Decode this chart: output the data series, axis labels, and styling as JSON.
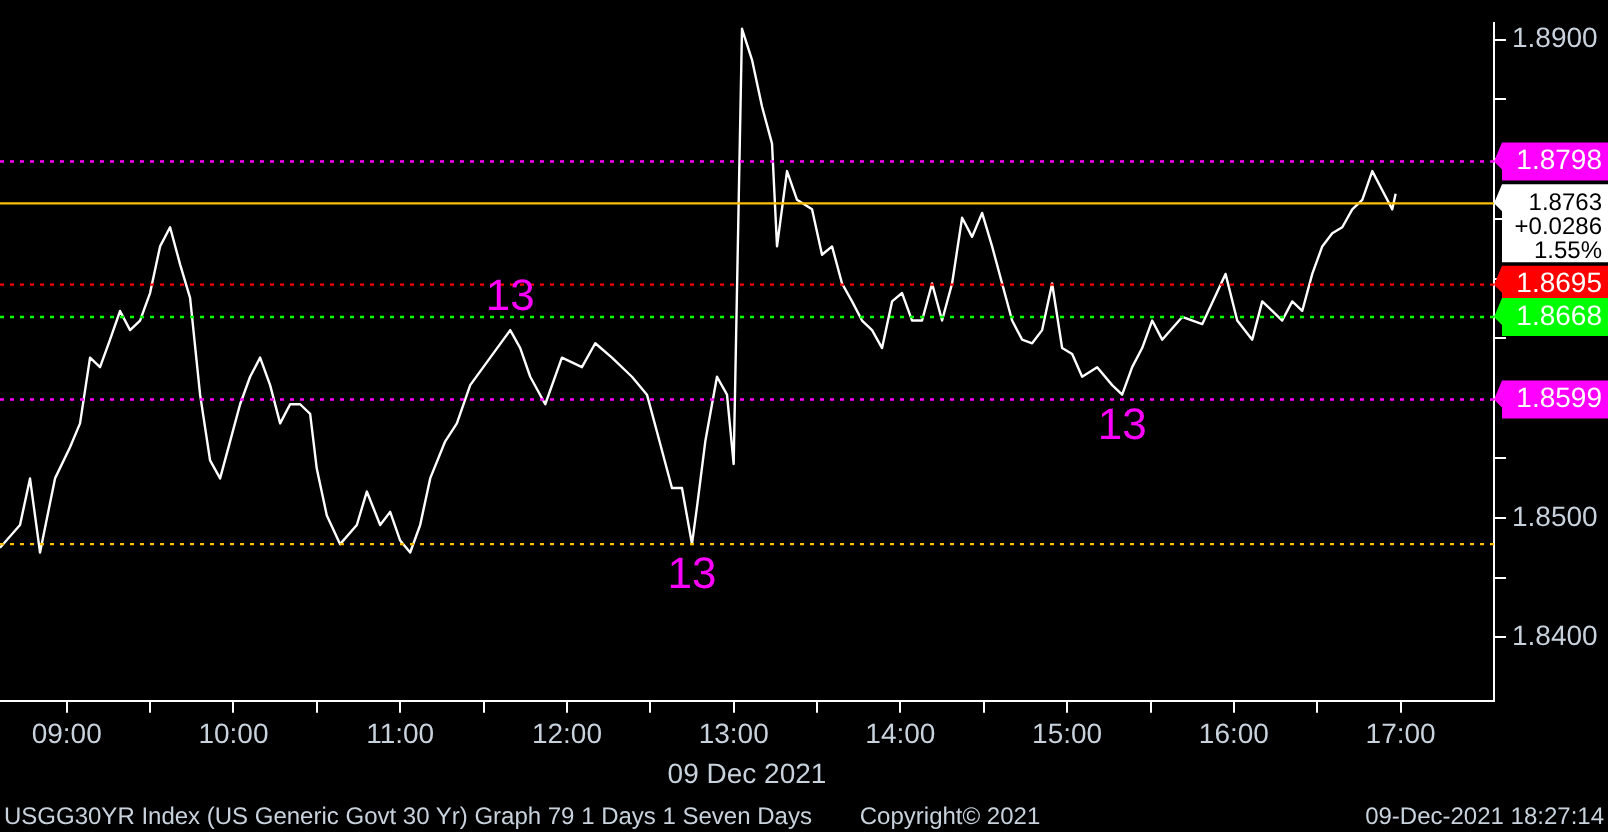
{
  "chart_data": {
    "type": "line",
    "title": "USGG30YR Index (US Generic Govt 30 Yr) Graph 79 1 Days 1 Seven Days",
    "xlabel": "09 Dec 2021",
    "xlim": [
      8.6,
      17.56
    ],
    "ylim": [
      1.8347,
      1.8914
    ],
    "xticks": [
      {
        "value": 9,
        "label": "09:00"
      },
      {
        "value": 9.5,
        "label": null
      },
      {
        "value": 10,
        "label": "10:00"
      },
      {
        "value": 10.5,
        "label": null
      },
      {
        "value": 11,
        "label": "11:00"
      },
      {
        "value": 11.5,
        "label": null
      },
      {
        "value": 12,
        "label": "12:00"
      },
      {
        "value": 12.5,
        "label": null
      },
      {
        "value": 13,
        "label": "13:00"
      },
      {
        "value": 13.5,
        "label": null
      },
      {
        "value": 14,
        "label": "14:00"
      },
      {
        "value": 14.5,
        "label": null
      },
      {
        "value": 15,
        "label": "15:00"
      },
      {
        "value": 15.5,
        "label": null
      },
      {
        "value": 16,
        "label": "16:00"
      },
      {
        "value": 16.5,
        "label": null
      },
      {
        "value": 17,
        "label": "17:00"
      }
    ],
    "yticks": [
      {
        "value": 1.84,
        "label": "1.8400"
      },
      {
        "value": 1.845,
        "label": null
      },
      {
        "value": 1.85,
        "label": "1.8500"
      },
      {
        "value": 1.855,
        "label": null
      },
      {
        "value": 1.86,
        "label": null
      },
      {
        "value": 1.865,
        "label": null
      },
      {
        "value": 1.87,
        "label": null
      },
      {
        "value": 1.875,
        "label": null
      },
      {
        "value": 1.88,
        "label": null
      },
      {
        "value": 1.885,
        "label": null
      },
      {
        "value": 1.89,
        "label": "1.8900"
      }
    ],
    "grid": false,
    "legend": false,
    "marker": "none",
    "line_style": "solid",
    "series": [
      {
        "color": "#ffffff",
        "x": [
          8.6,
          8.72,
          8.78,
          8.84,
          8.93,
          9.02,
          9.08,
          9.14,
          9.2,
          9.26,
          9.32,
          9.38,
          9.44,
          9.5,
          9.56,
          9.62,
          9.68,
          9.74,
          9.8,
          9.86,
          9.92,
          9.98,
          10.04,
          10.1,
          10.16,
          10.22,
          10.28,
          10.34,
          10.4,
          10.46,
          10.5,
          10.56,
          10.64,
          10.74,
          10.8,
          10.88,
          10.94,
          11.0,
          11.06,
          11.12,
          11.18,
          11.27,
          11.34,
          11.42,
          11.54,
          11.66,
          11.72,
          11.78,
          11.87,
          11.97,
          12.09,
          12.17,
          12.27,
          12.39,
          12.48,
          12.54,
          12.63,
          12.69,
          12.75,
          12.78,
          12.83,
          12.9,
          12.96,
          13.0,
          13.05,
          13.11,
          13.17,
          13.23,
          13.26,
          13.32,
          13.38,
          13.47,
          13.53,
          13.59,
          13.65,
          13.71,
          13.77,
          13.83,
          13.89,
          13.95,
          14.01,
          14.07,
          14.13,
          14.19,
          14.25,
          14.31,
          14.37,
          14.43,
          14.49,
          14.55,
          14.61,
          14.67,
          14.73,
          14.79,
          14.85,
          14.91,
          14.97,
          15.03,
          15.09,
          15.18,
          15.27,
          15.33,
          15.39,
          15.45,
          15.51,
          15.57,
          15.69,
          15.81,
          15.95,
          16.02,
          16.11,
          16.17,
          16.23,
          16.29,
          16.35,
          16.41,
          16.47,
          16.53,
          16.59,
          16.65,
          16.71,
          16.77,
          16.83,
          16.89,
          16.95,
          16.97
        ],
        "values": [
          1.8475,
          1.8494,
          1.8533,
          1.8471,
          1.8533,
          1.8559,
          1.8579,
          1.8634,
          1.8626,
          1.8649,
          1.8673,
          1.8657,
          1.8665,
          1.8688,
          1.8727,
          1.8743,
          1.8712,
          1.8684,
          1.8603,
          1.8548,
          1.8533,
          1.8564,
          1.8595,
          1.8618,
          1.8634,
          1.8611,
          1.8579,
          1.8595,
          1.8595,
          1.8587,
          1.8541,
          1.8502,
          1.8478,
          1.8494,
          1.8522,
          1.8494,
          1.8505,
          1.8481,
          1.8471,
          1.8494,
          1.8533,
          1.8564,
          1.8579,
          1.8611,
          1.8634,
          1.8657,
          1.8642,
          1.8618,
          1.8595,
          1.8634,
          1.8626,
          1.8646,
          1.8634,
          1.8618,
          1.8603,
          1.8572,
          1.8525,
          1.8525,
          1.8478,
          1.8509,
          1.8564,
          1.8618,
          1.8603,
          1.8545,
          1.8909,
          1.8883,
          1.8844,
          1.8813,
          1.8727,
          1.879,
          1.8766,
          1.8758,
          1.872,
          1.8727,
          1.8696,
          1.8681,
          1.8665,
          1.8657,
          1.8642,
          1.8681,
          1.8688,
          1.8665,
          1.8665,
          1.8696,
          1.8665,
          1.8696,
          1.8751,
          1.8735,
          1.8755,
          1.8727,
          1.8696,
          1.8665,
          1.8649,
          1.8646,
          1.8657,
          1.8696,
          1.8642,
          1.8637,
          1.8618,
          1.8626,
          1.8611,
          1.8603,
          1.8626,
          1.8642,
          1.8665,
          1.8649,
          1.8668,
          1.8662,
          1.8704,
          1.8665,
          1.8649,
          1.8681,
          1.8673,
          1.8665,
          1.8681,
          1.8673,
          1.8704,
          1.8727,
          1.8738,
          1.8743,
          1.8758,
          1.8766,
          1.879,
          1.8774,
          1.8758,
          1.8771
        ]
      }
    ],
    "ref_lines": [
      {
        "axis": "y",
        "value": 1.8798,
        "label": "1.8798",
        "color": "#ff00ff",
        "line_style": "dotted"
      },
      {
        "axis": "y",
        "value": 1.8763,
        "label": "1.8763",
        "color": "#ffc000",
        "line_style": "solid"
      },
      {
        "axis": "y",
        "value": 1.8695,
        "label": "1.8695",
        "color": "#ff0000",
        "line_style": "dotted"
      },
      {
        "axis": "y",
        "value": 1.8668,
        "label": "1.8668",
        "color": "#00ff00",
        "line_style": "dotted"
      },
      {
        "axis": "y",
        "value": 1.8599,
        "label": "1.8599",
        "color": "#ff00ff",
        "line_style": "dotted"
      },
      {
        "axis": "y",
        "value": 1.8478,
        "color": "#ffc000",
        "line_style": "dotted"
      }
    ],
    "annotations": [
      "+0.0286",
      "1.55%",
      {
        "text": "13",
        "x": 11.66,
        "y": 1.8657
      },
      {
        "text": "13",
        "x": 12.75,
        "y": 1.8478
      },
      {
        "text": "13",
        "x": 15.33,
        "y": 1.8603
      },
      "Copyright© 2021",
      "09-Dec-2021 18:27:14"
    ]
  }
}
